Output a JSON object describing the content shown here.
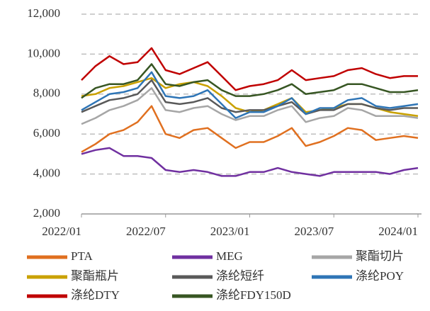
{
  "chart_data": {
    "type": "line",
    "categories": [
      "2022/01",
      null,
      null,
      null,
      null,
      null,
      "2022/07",
      null,
      null,
      null,
      null,
      null,
      "2023/01",
      null,
      null,
      null,
      null,
      null,
      "2023/07",
      null,
      null,
      null,
      null,
      null,
      "2024/01"
    ],
    "ylim": [
      2000,
      12000
    ],
    "yticks": [
      {
        "value": 2000,
        "label": "2,000"
      },
      {
        "value": 4000,
        "label": "4,000"
      },
      {
        "value": 6000,
        "label": "6,000"
      },
      {
        "value": 8000,
        "label": "8,000"
      },
      {
        "value": 10000,
        "label": "10,000"
      },
      {
        "value": 12000,
        "label": "12,000"
      }
    ],
    "grid": true,
    "legend": "bottom",
    "series": [
      {
        "name": "PTA",
        "color": "#e07020",
        "values": [
          5100,
          5500,
          6000,
          6200,
          6600,
          7400,
          6000,
          5800,
          6200,
          6300,
          5800,
          5300,
          5600,
          5600,
          5900,
          6300,
          5400,
          5600,
          5900,
          6300,
          6200,
          5700,
          5800,
          5900,
          5800
        ]
      },
      {
        "name": "MEG",
        "color": "#7030a0",
        "values": [
          5000,
          5200,
          5300,
          4900,
          4900,
          4800,
          4200,
          4100,
          4200,
          4100,
          3900,
          3900,
          4100,
          4100,
          4300,
          4100,
          4000,
          3900,
          4100,
          4100,
          4100,
          4100,
          4000,
          4200,
          4300
        ]
      },
      {
        "name": "聚酯切片",
        "color": "#a6a6a6",
        "values": [
          6500,
          6800,
          7200,
          7400,
          7700,
          8300,
          7200,
          7100,
          7300,
          7400,
          7000,
          6700,
          6900,
          6900,
          7200,
          7400,
          6600,
          6800,
          6900,
          7300,
          7200,
          6900,
          6900,
          6900,
          6800
        ]
      },
      {
        "name": "聚酯瓶片",
        "color": "#c9a100",
        "values": [
          7900,
          8000,
          8300,
          8400,
          8600,
          8800,
          8300,
          8500,
          8600,
          8400,
          7900,
          7300,
          7100,
          7200,
          7500,
          7800,
          7100,
          7200,
          7300,
          7500,
          7500,
          7300,
          7100,
          7000,
          6900
        ]
      },
      {
        "name": "涤纶短纤",
        "color": "#595959",
        "values": [
          7100,
          7400,
          7700,
          7800,
          8000,
          8700,
          7600,
          7500,
          7600,
          7800,
          7300,
          7100,
          7200,
          7200,
          7400,
          7600,
          7000,
          7200,
          7200,
          7500,
          7500,
          7300,
          7200,
          7300,
          7300
        ]
      },
      {
        "name": "涤纶POY",
        "color": "#2e75b6",
        "values": [
          7200,
          7600,
          8000,
          8100,
          8300,
          9100,
          7900,
          7800,
          7900,
          8200,
          7500,
          6800,
          7100,
          7100,
          7400,
          7800,
          7000,
          7300,
          7300,
          7700,
          7800,
          7400,
          7300,
          7400,
          7500
        ]
      },
      {
        "name": "涤纶DTY",
        "color": "#c00000",
        "values": [
          8700,
          9400,
          9900,
          9500,
          9600,
          10300,
          9200,
          9000,
          9300,
          9600,
          8900,
          8200,
          8400,
          8500,
          8700,
          9200,
          8700,
          8800,
          8900,
          9200,
          9300,
          9000,
          8800,
          8900,
          8900
        ]
      },
      {
        "name": "涤纶FDY150D",
        "color": "#375623",
        "values": [
          7800,
          8300,
          8500,
          8500,
          8700,
          9500,
          8500,
          8400,
          8600,
          8700,
          8200,
          7900,
          7900,
          8000,
          8200,
          8500,
          8000,
          8100,
          8200,
          8500,
          8500,
          8300,
          8100,
          8100,
          8200
        ]
      }
    ]
  }
}
